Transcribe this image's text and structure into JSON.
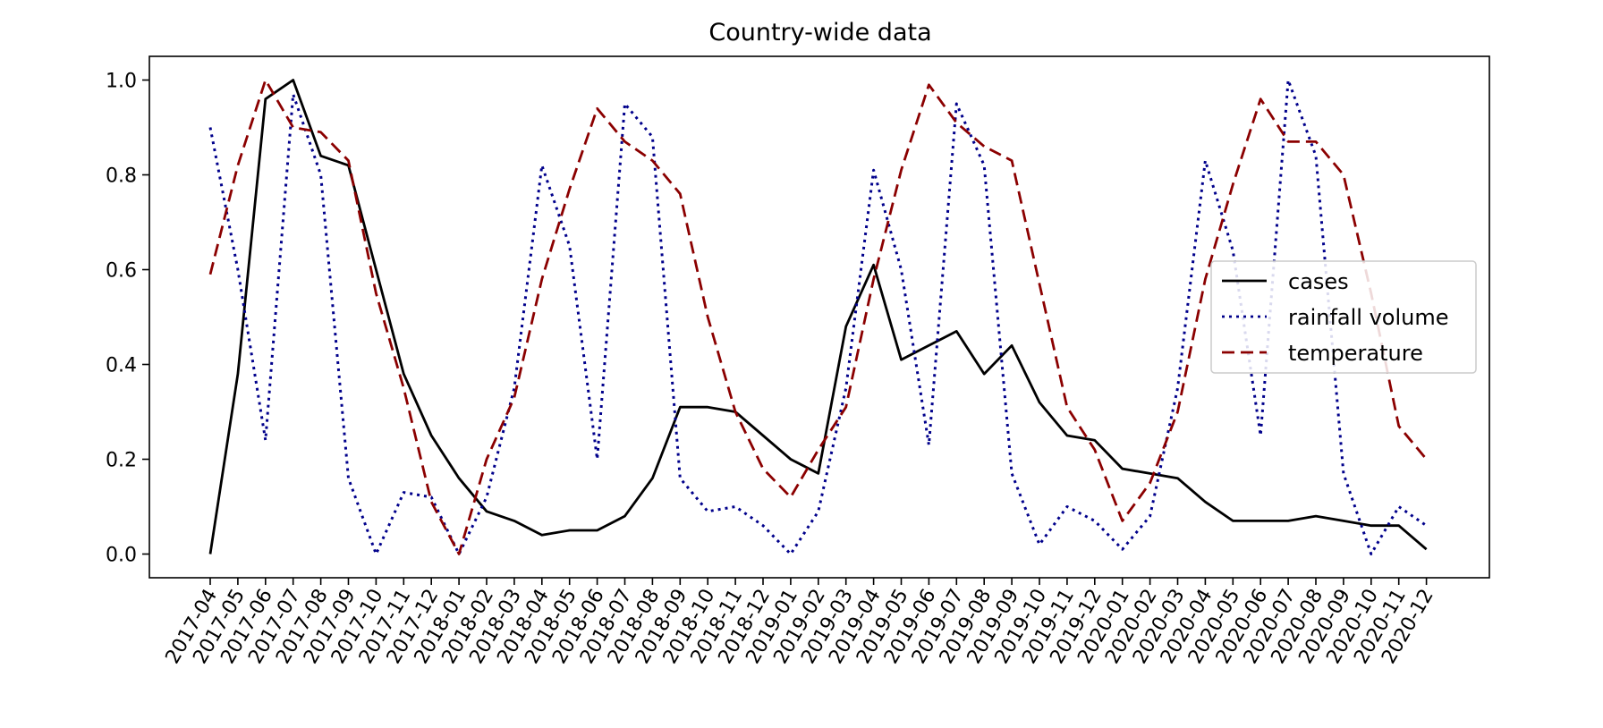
{
  "chart_data": {
    "type": "line",
    "title": "Country-wide data",
    "xlabel": "",
    "ylabel": "",
    "ylim": [
      -0.05,
      1.05
    ],
    "yticks": [
      0.0,
      0.2,
      0.4,
      0.6,
      0.8,
      1.0
    ],
    "ytick_labels": [
      "0.0",
      "0.2",
      "0.4",
      "0.6",
      "0.8",
      "1.0"
    ],
    "grid": false,
    "legend_position": "center-right",
    "categories": [
      "2017-04",
      "2017-05",
      "2017-06",
      "2017-07",
      "2017-08",
      "2017-09",
      "2017-10",
      "2017-11",
      "2017-12",
      "2018-01",
      "2018-02",
      "2018-03",
      "2018-04",
      "2018-05",
      "2018-06",
      "2018-07",
      "2018-08",
      "2018-09",
      "2018-10",
      "2018-11",
      "2018-12",
      "2019-01",
      "2019-02",
      "2019-03",
      "2019-04",
      "2019-05",
      "2019-06",
      "2019-07",
      "2019-08",
      "2019-09",
      "2019-10",
      "2019-11",
      "2019-12",
      "2020-01",
      "2020-02",
      "2020-03",
      "2020-04",
      "2020-05",
      "2020-06",
      "2020-07",
      "2020-08",
      "2020-09",
      "2020-10",
      "2020-11",
      "2020-12"
    ],
    "series": [
      {
        "name": "cases",
        "color": "#000000",
        "style": "solid",
        "values": [
          0.0,
          0.38,
          0.96,
          1.0,
          0.84,
          0.82,
          0.6,
          0.38,
          0.25,
          0.16,
          0.09,
          0.07,
          0.04,
          0.05,
          0.05,
          0.08,
          0.16,
          0.31,
          0.31,
          0.3,
          0.25,
          0.2,
          0.17,
          0.48,
          0.61,
          0.41,
          0.44,
          0.47,
          0.38,
          0.44,
          0.32,
          0.25,
          0.24,
          0.18,
          0.17,
          0.16,
          0.11,
          0.07,
          0.07,
          0.07,
          0.08,
          0.07,
          0.06,
          0.06,
          0.01
        ]
      },
      {
        "name": "rainfall volume",
        "color": "#00008b",
        "style": "dotted",
        "values": [
          0.9,
          0.6,
          0.24,
          0.97,
          0.8,
          0.16,
          0.0,
          0.13,
          0.12,
          0.0,
          0.12,
          0.35,
          0.82,
          0.65,
          0.2,
          0.95,
          0.88,
          0.16,
          0.09,
          0.1,
          0.06,
          0.0,
          0.09,
          0.35,
          0.81,
          0.6,
          0.23,
          0.95,
          0.82,
          0.17,
          0.02,
          0.1,
          0.07,
          0.01,
          0.08,
          0.35,
          0.83,
          0.64,
          0.25,
          1.0,
          0.84,
          0.17,
          0.0,
          0.1,
          0.06
        ]
      },
      {
        "name": "temperature",
        "color": "#8b0000",
        "style": "dashed",
        "values": [
          0.59,
          0.82,
          1.0,
          0.9,
          0.89,
          0.83,
          0.55,
          0.35,
          0.11,
          0.0,
          0.2,
          0.33,
          0.58,
          0.77,
          0.94,
          0.87,
          0.83,
          0.76,
          0.5,
          0.3,
          0.18,
          0.12,
          0.22,
          0.31,
          0.58,
          0.81,
          0.99,
          0.91,
          0.86,
          0.83,
          0.57,
          0.31,
          0.22,
          0.07,
          0.15,
          0.3,
          0.58,
          0.78,
          0.96,
          0.87,
          0.87,
          0.8,
          0.55,
          0.27,
          0.2
        ]
      }
    ]
  }
}
